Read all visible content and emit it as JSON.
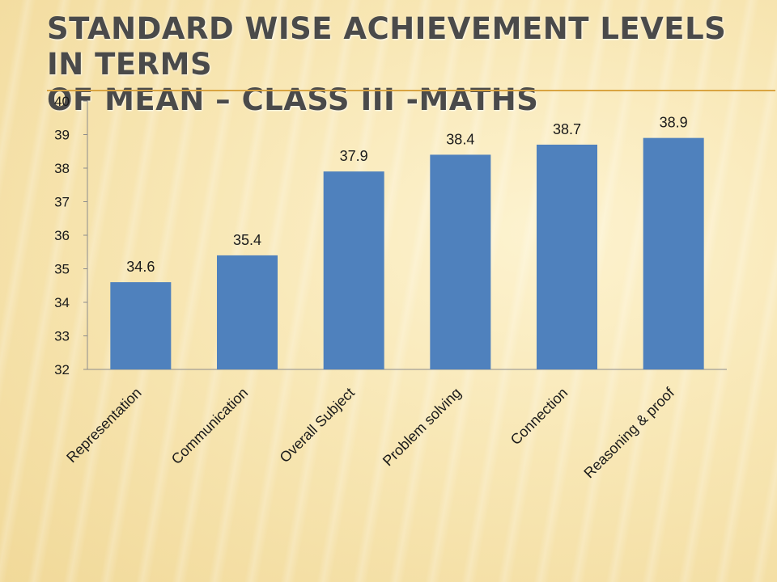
{
  "slide": {
    "title_line1": "STANDARD WISE ACHIEVEMENT LEVELS IN TERMS",
    "title_line2": "OF MEAN – CLASS III -MATHS"
  },
  "colors": {
    "bar": "#4f81bd",
    "axis": "#8c8c8c",
    "text": "#1a1a1a",
    "title_rule": "#d9a441"
  },
  "chart_data": {
    "type": "bar",
    "categories": [
      "Representation",
      "Communication",
      "Overall Subject",
      "Problem solving",
      "Connection",
      "Reasoning & proof"
    ],
    "values": [
      34.6,
      35.4,
      37.9,
      38.4,
      38.7,
      38.9
    ],
    "value_labels": [
      "34.6",
      "35.4",
      "37.9",
      "38.4",
      "38.7",
      "38.9"
    ],
    "ylim": [
      32,
      40
    ],
    "yticks": [
      "32",
      "33",
      "34",
      "35",
      "36",
      "37",
      "38",
      "39",
      "40"
    ],
    "grid": false,
    "legend": "none",
    "xlabel": "",
    "ylabel": ""
  }
}
